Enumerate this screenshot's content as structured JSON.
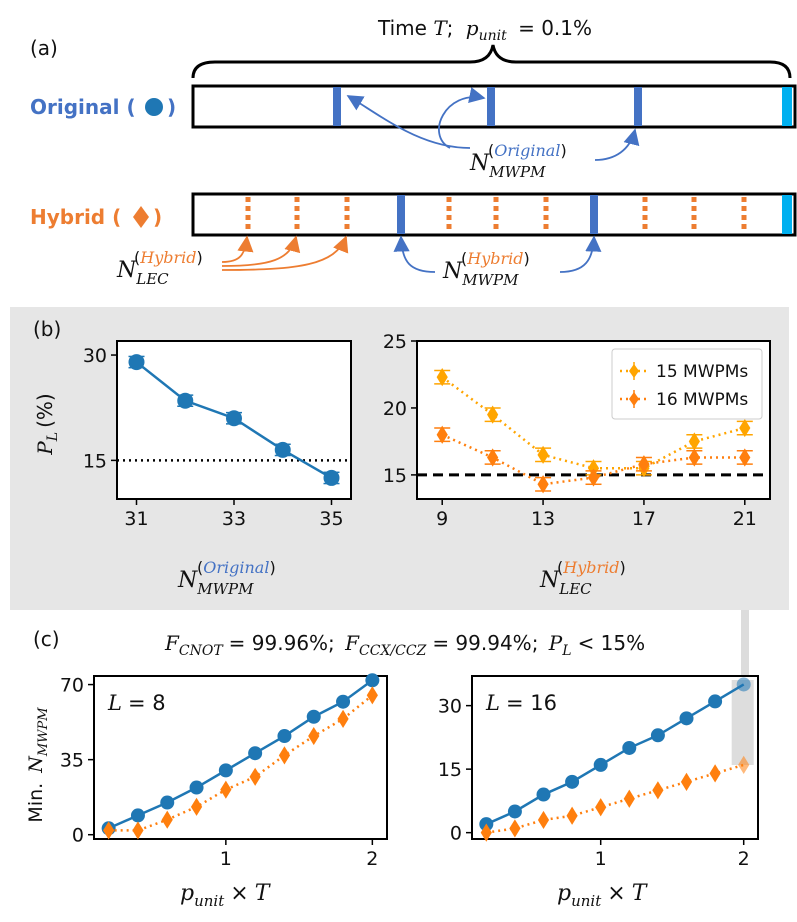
{
  "panel_a": {
    "label": "(a)",
    "time_text": "Time T;  p_unit = 0.1%",
    "time_word": "Time",
    "time_T": "T",
    "time_semicolon": ";",
    "p_sym": "p",
    "p_sub": "unit",
    "p_eq": "= 0.1%",
    "original_label": "Original (",
    "original_close": ")",
    "hybrid_label": "Hybrid (",
    "hybrid_close": ")",
    "n_sym": "N",
    "mwpm_sub": "MWPM",
    "lec_sub": "LEC",
    "original_sup": "Original",
    "hybrid_sup": "Hybrid",
    "paren_open": "(",
    "paren_close": ")"
  },
  "panel_b": {
    "label": "(b)"
  },
  "panel_c": {
    "label": "(c)",
    "header_text": "F_CNOT = 99.96%; F_CCX/CCZ = 99.94%; P_L < 15%",
    "f_sym": "F",
    "cnot_sub": "CNOT",
    "cnot_val": "= 99.96%;",
    "ccx_sub": "CCX/CCZ",
    "ccx_val": "= 99.94%;",
    "pl_sym": "P",
    "pl_sub": "L",
    "pl_val": "< 15%"
  },
  "colors": {
    "blue": "#1f77b4",
    "bar_blue": "#4472c4",
    "cyan": "#00b0f0",
    "orange": "#ed7d31",
    "dark_orange": "#ff7f0e",
    "light_orange": "#ffa500",
    "text_blue": "#4472c4",
    "panel_bg": "#e6e6e6"
  },
  "chart_data": [
    {
      "id": "b-left",
      "type": "line",
      "x": [
        31,
        32,
        33,
        34,
        35
      ],
      "series": [
        {
          "name": "Original",
          "marker": "circle",
          "values": [
            29,
            23.5,
            21,
            16.5,
            12.5
          ],
          "errors": [
            0.8,
            0.8,
            0.8,
            0.8,
            0.8
          ]
        }
      ],
      "xlim": [
        30.6,
        35.4
      ],
      "ylim": [
        9.5,
        32
      ],
      "xticks": [
        "31",
        "33",
        "35"
      ],
      "yticks": [
        "15",
        "30"
      ],
      "ylabel_sym": "P",
      "ylabel_sub": "L",
      "ylabel_unit": "(%)",
      "reference_line": 15,
      "xlabel": "N_MWPM^(Original)"
    },
    {
      "id": "b-right",
      "type": "line",
      "x": [
        9,
        11,
        13,
        15,
        17,
        19,
        21
      ],
      "series": [
        {
          "name": "15 MWPMs",
          "marker": "diamond",
          "values": [
            22.3,
            19.5,
            16.5,
            15.5,
            15.5,
            17.5,
            18.5
          ],
          "errors": [
            0.5,
            0.5,
            0.5,
            0.5,
            0.5,
            0.5,
            0.5
          ]
        },
        {
          "name": "16 MWPMs",
          "marker": "diamond",
          "values": [
            18,
            16.3,
            14.3,
            14.8,
            15.8,
            16.3,
            16.3
          ],
          "errors": [
            0.5,
            0.5,
            0.5,
            0.5,
            0.5,
            0.5,
            0.5
          ]
        }
      ],
      "xlim": [
        8,
        22
      ],
      "ylim": [
        13.2,
        25
      ],
      "xticks": [
        "9",
        "13",
        "17",
        "21"
      ],
      "yticks": [
        "15",
        "20",
        "25"
      ],
      "reference_line": 15,
      "legend": [
        "15 MWPMs",
        "16 MWPMs"
      ],
      "legend_position": "top-right",
      "xlabel": "N_LEC^(Hybrid)"
    },
    {
      "id": "c-left",
      "type": "line",
      "annotation": "L = 8",
      "annotation_sym": "L",
      "annotation_val": "= 8",
      "x": [
        0.2,
        0.4,
        0.6,
        0.8,
        1.0,
        1.2,
        1.4,
        1.6,
        1.8,
        2.0
      ],
      "series": [
        {
          "name": "Original",
          "marker": "circle",
          "values": [
            3,
            9,
            15,
            22,
            30,
            38,
            46,
            55,
            62,
            72
          ]
        },
        {
          "name": "Hybrid",
          "marker": "diamond",
          "values": [
            2,
            2,
            7,
            13,
            21,
            27,
            37,
            46,
            54,
            65
          ]
        }
      ],
      "xlim": [
        0.1,
        2.1
      ],
      "ylim": [
        -2,
        74
      ],
      "xticks": [
        "1",
        "2"
      ],
      "yticks": [
        "0",
        "35",
        "70"
      ],
      "ylabel": "Min. N_MWPM",
      "ylabel_text": "Min.",
      "ylabel_sym": "N",
      "ylabel_sub": "MWPM",
      "xlabel": "p_unit × T",
      "xlabel_sym": "p",
      "xlabel_sub": "unit",
      "xlabel_times": "×",
      "xlabel_T": "T"
    },
    {
      "id": "c-right",
      "type": "line",
      "annotation": "L = 16",
      "annotation_sym": "L",
      "annotation_val": "= 16",
      "x": [
        0.2,
        0.4,
        0.6,
        0.8,
        1.0,
        1.2,
        1.4,
        1.6,
        1.8,
        2.0
      ],
      "series": [
        {
          "name": "Original",
          "marker": "circle",
          "values": [
            2,
            5,
            9,
            12,
            16,
            20,
            23,
            27,
            31,
            35
          ]
        },
        {
          "name": "Hybrid",
          "marker": "diamond",
          "values": [
            0,
            1,
            3,
            4,
            6,
            8,
            10,
            12,
            14,
            16
          ]
        }
      ],
      "xlim": [
        0.1,
        2.1
      ],
      "ylim": [
        -1.5,
        37
      ],
      "xticks": [
        "1",
        "2"
      ],
      "yticks": [
        "0",
        "15",
        "30"
      ],
      "highlight_x": 2,
      "xlabel": "p_unit × T",
      "xlabel_sym": "p",
      "xlabel_sub": "unit",
      "xlabel_times": "×",
      "xlabel_T": "T"
    }
  ]
}
